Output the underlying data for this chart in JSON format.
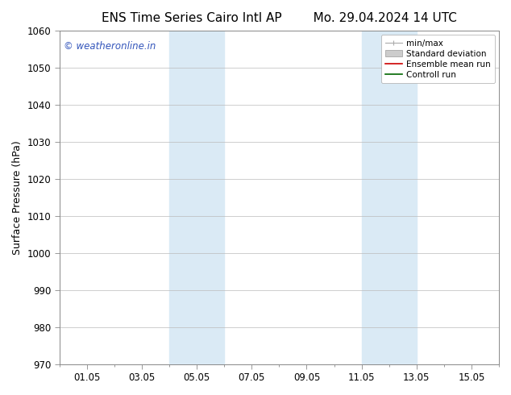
{
  "title_left": "ENS Time Series Cairo Intl AP",
  "title_right": "Mo. 29.04.2024 14 UTC",
  "ylabel": "Surface Pressure (hPa)",
  "ylim": [
    970,
    1060
  ],
  "yticks": [
    970,
    980,
    990,
    1000,
    1010,
    1020,
    1030,
    1040,
    1050,
    1060
  ],
  "xtick_labels": [
    "01.05",
    "03.05",
    "05.05",
    "07.05",
    "09.05",
    "11.05",
    "13.05",
    "15.05"
  ],
  "xtick_positions": [
    1,
    3,
    5,
    7,
    9,
    11,
    13,
    15
  ],
  "x_min": 0.0,
  "x_max": 16.0,
  "shaded_bands": [
    {
      "start": 4.0,
      "end": 6.0
    },
    {
      "start": 11.0,
      "end": 13.0
    }
  ],
  "shaded_color": "#daeaf5",
  "watermark_text": "© weatheronline.in",
  "watermark_color": "#3355bb",
  "legend_entries": [
    {
      "label": "min/max",
      "type": "minmax",
      "color": "#aaaaaa"
    },
    {
      "label": "Standard deviation",
      "type": "patch",
      "color": "#cccccc"
    },
    {
      "label": "Ensemble mean run",
      "type": "line",
      "color": "#cc0000"
    },
    {
      "label": "Controll run",
      "type": "line",
      "color": "#006600"
    }
  ],
  "background_color": "#ffffff",
  "grid_color": "#bbbbbb",
  "spine_color": "#888888",
  "title_fontsize": 11,
  "ylabel_fontsize": 9,
  "tick_fontsize": 8.5,
  "legend_fontsize": 7.5,
  "watermark_fontsize": 8.5
}
